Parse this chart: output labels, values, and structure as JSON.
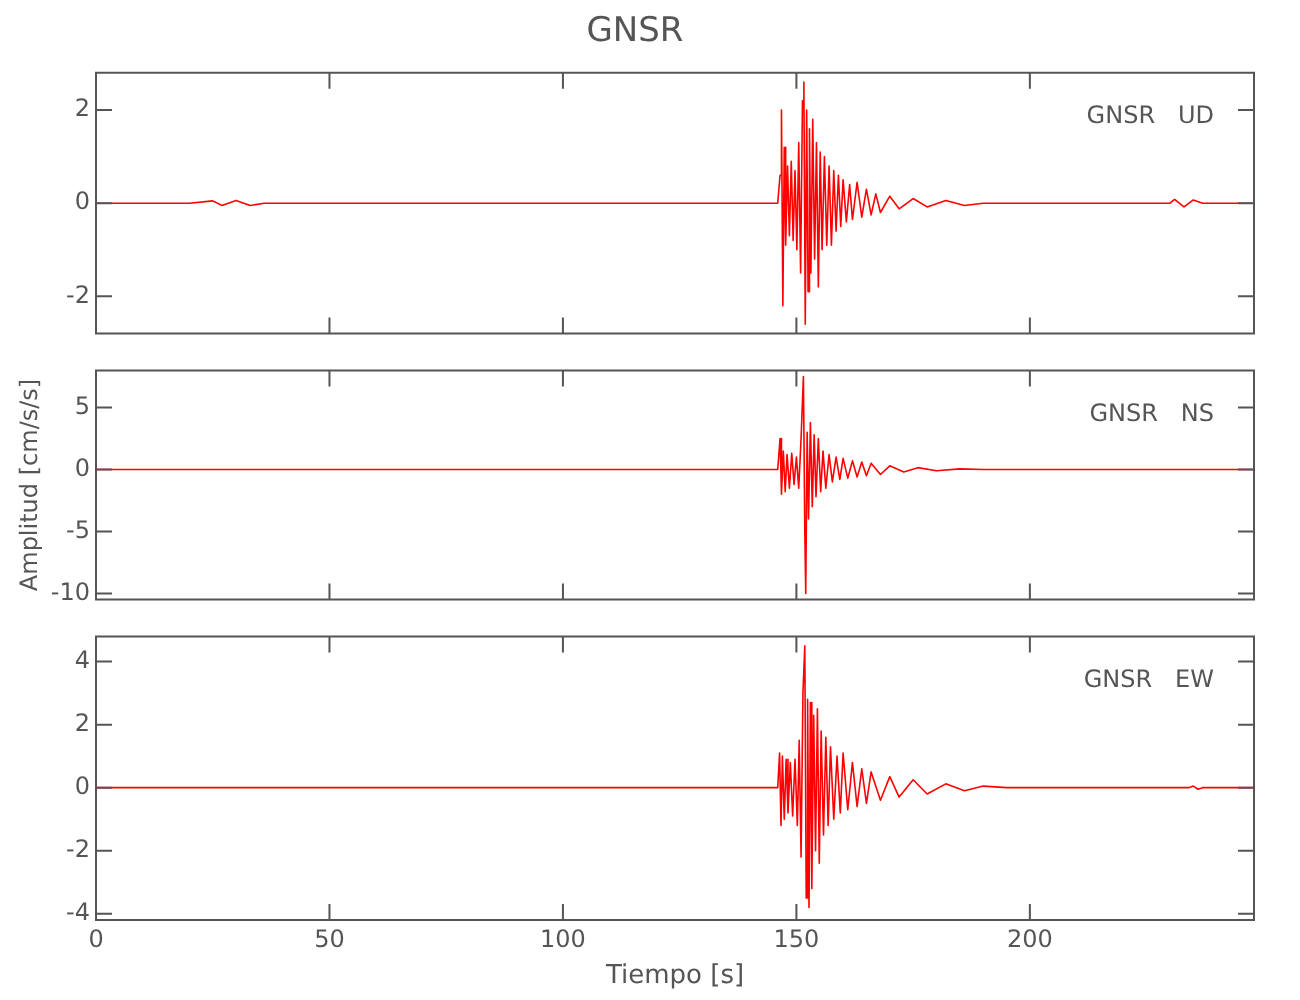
{
  "chart_data": [
    {
      "type": "line",
      "title": "GNSR",
      "annotations": [
        "GNSR   UD"
      ],
      "xlim": [
        0,
        248
      ],
      "xticks": [
        0,
        50,
        100,
        150,
        200
      ],
      "ylim": [
        -2.8,
        2.8
      ],
      "yticks": [
        -2,
        0,
        2
      ],
      "tick_labels": "y",
      "legend": false,
      "marker": "none",
      "series": [
        {
          "color": "#ff0000",
          "x": [
            0,
            20,
            25,
            27,
            30,
            33,
            36,
            146,
            146.5,
            146.8,
            147.1,
            147.4,
            147.7,
            148.1,
            148.5,
            148.9,
            149.3,
            149.7,
            150.1,
            150.5,
            150.9,
            151.3,
            151.6,
            151.9,
            152.2,
            152.5,
            152.8,
            153.1,
            153.5,
            153.9,
            154.3,
            154.7,
            155.1,
            155.5,
            156,
            156.5,
            157,
            157.5,
            158,
            158.5,
            159,
            159.5,
            160,
            160.7,
            161.4,
            162,
            163,
            164,
            165,
            166,
            167,
            168,
            170,
            172,
            175,
            178,
            182,
            186,
            190,
            230,
            231,
            233,
            235,
            237,
            248
          ],
          "values": [
            0,
            0,
            0.05,
            -0.05,
            0.06,
            -0.05,
            0,
            0,
            0.6,
            2.0,
            -2.2,
            1.2,
            -0.9,
            0.8,
            -0.7,
            0.9,
            -0.8,
            0.7,
            -1.0,
            1.3,
            -1.5,
            2.2,
            2.6,
            -2.6,
            2.0,
            -1.9,
            1.6,
            -1.5,
            1.8,
            -1.2,
            1.3,
            -1.8,
            1.1,
            -1.0,
            1.0,
            -0.9,
            0.8,
            -0.9,
            0.7,
            -0.6,
            0.6,
            -0.5,
            0.5,
            -0.4,
            0.4,
            -0.35,
            0.45,
            -0.3,
            0.3,
            -0.25,
            0.2,
            -0.2,
            0.15,
            -0.12,
            0.1,
            -0.08,
            0.06,
            -0.05,
            0,
            0,
            0.08,
            -0.08,
            0.07,
            0,
            0
          ]
        }
      ]
    },
    {
      "type": "line",
      "ylabel": "Amplitud [cm/s/s]",
      "annotations": [
        "GNSR   NS"
      ],
      "xlim": [
        0,
        248
      ],
      "xticks": [
        0,
        50,
        100,
        150,
        200
      ],
      "ylim": [
        -10.5,
        8
      ],
      "yticks": [
        -10,
        -5,
        0,
        5
      ],
      "tick_labels": "y",
      "legend": false,
      "marker": "none",
      "series": [
        {
          "color": "#ff0000",
          "x": [
            0,
            146,
            146.5,
            146.8,
            147.2,
            147.6,
            148,
            148.5,
            149,
            149.5,
            150,
            150.5,
            151,
            151.5,
            151.8,
            152,
            152.3,
            152.6,
            153,
            153.4,
            153.8,
            154.2,
            154.7,
            155.2,
            155.7,
            156.3,
            157,
            157.7,
            158.5,
            159.3,
            160,
            161,
            162,
            163,
            164,
            165,
            166,
            168,
            170,
            173,
            176,
            180,
            185,
            190,
            248
          ],
          "values": [
            0,
            0,
            2.5,
            -2,
            1.5,
            -1.8,
            1.2,
            -1.5,
            1.3,
            -1.2,
            1.0,
            -1.5,
            2.5,
            7.5,
            -5,
            -10,
            3,
            -4,
            3.8,
            -3,
            2.8,
            -2.2,
            2.5,
            -1.8,
            1.5,
            -1.5,
            1.2,
            -1.0,
            1.0,
            -0.8,
            0.9,
            -0.7,
            0.7,
            -0.6,
            0.6,
            -0.5,
            0.5,
            -0.4,
            0.3,
            -0.2,
            0.15,
            -0.1,
            0.05,
            0,
            0
          ]
        }
      ]
    },
    {
      "type": "line",
      "xlabel": "Tiempo [s]",
      "annotations": [
        "GNSR   EW"
      ],
      "xlim": [
        0,
        248
      ],
      "xticks": [
        0,
        50,
        100,
        150,
        200
      ],
      "ylim": [
        -4.2,
        4.8
      ],
      "yticks": [
        -4,
        -2,
        0,
        2,
        4
      ],
      "legend": false,
      "marker": "none",
      "series": [
        {
          "color": "#ff0000",
          "x": [
            0,
            146,
            146.4,
            146.7,
            147,
            147.4,
            147.8,
            148.2,
            148.7,
            149.2,
            149.7,
            150.2,
            150.6,
            151,
            151.4,
            151.8,
            152.1,
            152.4,
            152.7,
            153,
            153.3,
            153.7,
            154.1,
            154.5,
            154.9,
            155.3,
            155.8,
            156.3,
            156.8,
            157.3,
            158,
            158.7,
            159.4,
            160,
            161,
            162,
            163,
            164,
            165,
            166,
            168,
            170,
            172,
            175,
            178,
            182,
            186,
            190,
            195,
            234,
            235,
            236,
            237,
            248
          ],
          "values": [
            0,
            0,
            1.1,
            -1.2,
            1.0,
            -1.0,
            0.9,
            -0.8,
            0.8,
            -0.9,
            0.9,
            -1.2,
            1.5,
            -2.2,
            3.0,
            4.5,
            -3.5,
            2.8,
            -3.8,
            2.7,
            -3.2,
            2.3,
            -2.0,
            2.5,
            -2.4,
            1.8,
            -1.5,
            1.6,
            -1.2,
            1.3,
            -1.0,
            1.0,
            -0.8,
            1.1,
            -0.7,
            0.8,
            -0.6,
            0.6,
            -0.5,
            0.5,
            -0.4,
            0.35,
            -0.3,
            0.25,
            -0.2,
            0.12,
            -0.1,
            0.05,
            0,
            0,
            0.05,
            -0.05,
            0,
            0
          ]
        }
      ]
    }
  ]
}
